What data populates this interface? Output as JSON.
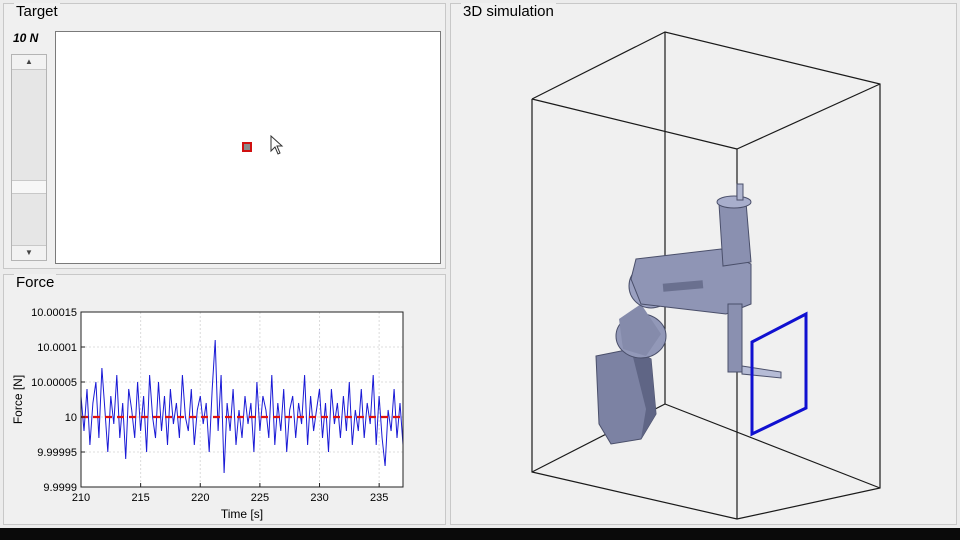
{
  "target_panel": {
    "title": "Target",
    "force_value_label": "10 N",
    "slider_value": 0.33
  },
  "force_panel": {
    "title": "Force"
  },
  "simulation_panel": {
    "title": "3D simulation"
  },
  "colors": {
    "signal": "#1a1ad6",
    "reference": "#e01010",
    "target_frame": "#1010d0",
    "robot": "#8a90b0"
  },
  "chart_data": {
    "type": "line",
    "xlabel": "Time [s]",
    "ylabel": "Force [N]",
    "xlim": [
      210,
      237
    ],
    "ylim": [
      9.9999,
      10.00015
    ],
    "xticks": [
      210,
      215,
      220,
      225,
      230,
      235
    ],
    "yticks": [
      9.9999,
      9.99995,
      10,
      10.00005,
      10.0001,
      10.00015
    ],
    "ytick_labels": [
      "9.9999",
      "9.99995",
      "10",
      "10.00005",
      "10.0001",
      "10.00015"
    ],
    "grid": true,
    "series": [
      {
        "style": "solid",
        "x": [
          210.0,
          210.25,
          210.5,
          210.75,
          211.0,
          211.25,
          211.5,
          211.75,
          212.0,
          212.25,
          212.5,
          212.75,
          213.0,
          213.25,
          213.5,
          213.75,
          214.0,
          214.25,
          214.5,
          214.75,
          215.0,
          215.25,
          215.5,
          215.75,
          216.0,
          216.25,
          216.5,
          216.75,
          217.0,
          217.25,
          217.5,
          217.75,
          218.0,
          218.25,
          218.5,
          218.75,
          219.0,
          219.25,
          219.5,
          219.75,
          220.0,
          220.25,
          220.5,
          220.75,
          221.0,
          221.25,
          221.5,
          221.75,
          222.0,
          222.25,
          222.5,
          222.75,
          223.0,
          223.25,
          223.5,
          223.75,
          224.0,
          224.25,
          224.5,
          224.75,
          225.0,
          225.25,
          225.5,
          225.75,
          226.0,
          226.25,
          226.5,
          226.75,
          227.0,
          227.25,
          227.5,
          227.75,
          228.0,
          228.25,
          228.5,
          228.75,
          229.0,
          229.25,
          229.5,
          229.75,
          230.0,
          230.25,
          230.5,
          230.75,
          231.0,
          231.25,
          231.5,
          231.75,
          232.0,
          232.25,
          232.5,
          232.75,
          233.0,
          233.25,
          233.5,
          233.75,
          234.0,
          234.25,
          234.5,
          234.75,
          235.0,
          235.25,
          235.5,
          235.75,
          236.0,
          236.25,
          236.5,
          236.75,
          237.0
        ],
        "y": [
          10.00003,
          9.99998,
          10.00004,
          9.99996,
          10.00002,
          10.00005,
          9.99997,
          10.00007,
          10.00001,
          9.99995,
          10.00003,
          9.99999,
          10.00006,
          9.99997,
          10.00002,
          9.99994,
          10.00004,
          10.00001,
          9.99997,
          10.00005,
          9.99998,
          10.00003,
          9.99995,
          10.00006,
          10.0,
          9.99997,
          10.00005,
          9.99998,
          10.00003,
          9.99996,
          10.00004,
          9.99999,
          10.00002,
          9.99997,
          10.00006,
          10.0,
          9.99998,
          10.00004,
          9.99996,
          10.00001,
          10.00003,
          9.99999,
          10.00002,
          9.99995,
          10.00004,
          10.00011,
          9.99998,
          10.00006,
          9.99992,
          10.00002,
          9.99998,
          10.00004,
          9.99996,
          10.00001,
          9.99997,
          10.00003,
          9.99999,
          10.00002,
          9.99995,
          10.00005,
          9.99998,
          10.00003,
          10.00001,
          9.99997,
          10.00006,
          9.99996,
          10.00002,
          9.99998,
          10.00004,
          9.99995,
          10.00001,
          10.00003,
          9.99997,
          10.00002,
          9.99999,
          10.00006,
          9.99996,
          10.00003,
          9.99998,
          10.00001,
          10.00004,
          9.99997,
          10.00002,
          9.99995,
          10.00004,
          9.99999,
          10.00002,
          9.99997,
          10.00003,
          9.99998,
          10.00005,
          9.99996,
          10.00001,
          9.99998,
          10.00004,
          9.99997,
          10.00002,
          9.99999,
          10.00006,
          9.99996,
          10.00003,
          9.99997,
          9.99993,
          10.00001,
          9.99998,
          10.00004,
          9.99997,
          10.00002,
          9.99996
        ]
      },
      {
        "style": "dashed",
        "x": [
          210,
          237
        ],
        "y": [
          10,
          10
        ]
      }
    ]
  }
}
